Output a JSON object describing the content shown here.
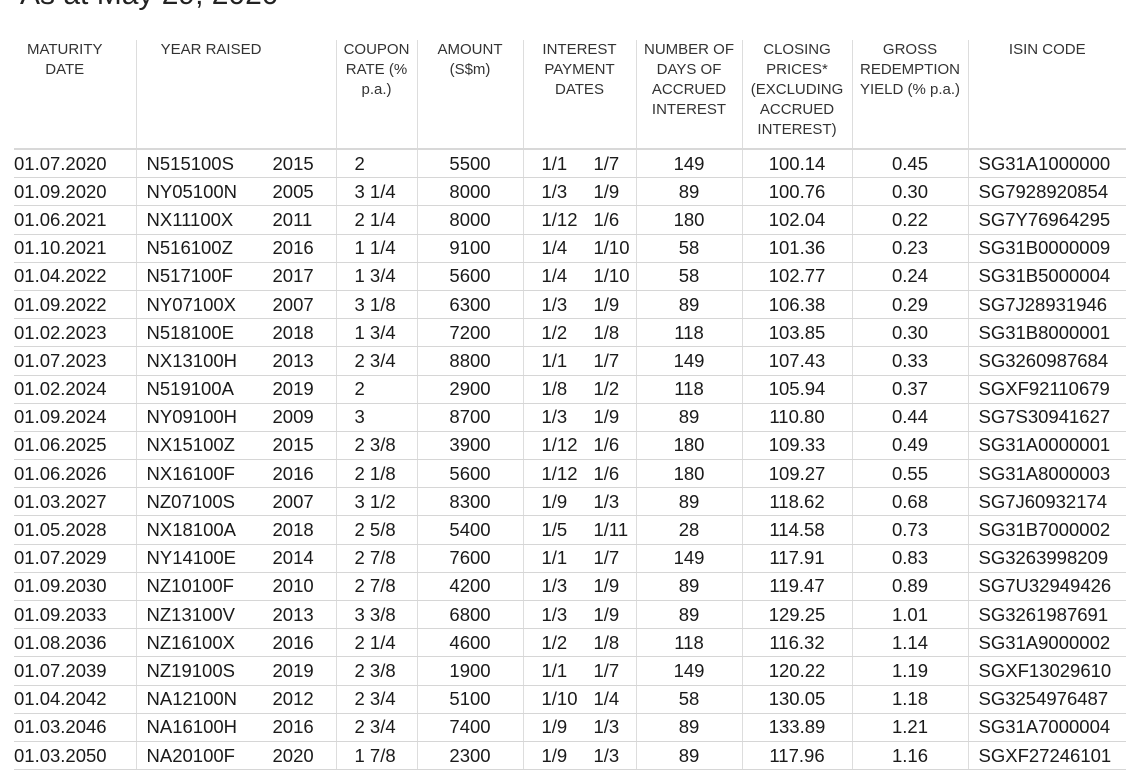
{
  "title": "As at May 29, 2020",
  "columns": [
    "MATURITY DATE",
    "YEAR RAISED",
    "COUPON RATE (% p.a.)",
    "AMOUNT (S$m)",
    "INTEREST PAYMENT DATES",
    "NUMBER OF DAYS OF ACCRUED INTEREST",
    "CLOSING PRICES* (EXCLUDING ACCRUED INTEREST)",
    "GROSS REDEMPTION YIELD (% p.a.)",
    "ISIN CODE"
  ],
  "rows": [
    [
      "01.07.2020",
      "N515100S",
      "2015",
      "2",
      "5500",
      "1/1",
      "1/7",
      "149",
      "100.14",
      "0.45",
      "SG31A1000000"
    ],
    [
      "01.09.2020",
      "NY05100N",
      "2005",
      "3 1/4",
      "8000",
      "1/3",
      "1/9",
      "89",
      "100.76",
      "0.30",
      "SG7928920854"
    ],
    [
      "01.06.2021",
      "NX11100X",
      "2011",
      "2 1/4",
      "8000",
      "1/12",
      "1/6",
      "180",
      "102.04",
      "0.22",
      "SG7Y76964295"
    ],
    [
      "01.10.2021",
      "N516100Z",
      "2016",
      "1 1/4",
      "9100",
      "1/4",
      "1/10",
      "58",
      "101.36",
      "0.23",
      "SG31B0000009"
    ],
    [
      "01.04.2022",
      "N517100F",
      "2017",
      "1 3/4",
      "5600",
      "1/4",
      "1/10",
      "58",
      "102.77",
      "0.24",
      "SG31B5000004"
    ],
    [
      "01.09.2022",
      "NY07100X",
      "2007",
      "3 1/8",
      "6300",
      "1/3",
      "1/9",
      "89",
      "106.38",
      "0.29",
      "SG7J28931946"
    ],
    [
      "01.02.2023",
      "N518100E",
      "2018",
      "1 3/4",
      "7200",
      "1/2",
      "1/8",
      "118",
      "103.85",
      "0.30",
      "SG31B8000001"
    ],
    [
      "01.07.2023",
      "NX13100H",
      "2013",
      "2 3/4",
      "8800",
      "1/1",
      "1/7",
      "149",
      "107.43",
      "0.33",
      "SG3260987684"
    ],
    [
      "01.02.2024",
      "N519100A",
      "2019",
      "2",
      "2900",
      "1/8",
      "1/2",
      "118",
      "105.94",
      "0.37",
      "SGXF92110679"
    ],
    [
      "01.09.2024",
      "NY09100H",
      "2009",
      "3",
      "8700",
      "1/3",
      "1/9",
      "89",
      "110.80",
      "0.44",
      "SG7S30941627"
    ],
    [
      "01.06.2025",
      "NX15100Z",
      "2015",
      "2 3/8",
      "3900",
      "1/12",
      "1/6",
      "180",
      "109.33",
      "0.49",
      "SG31A0000001"
    ],
    [
      "01.06.2026",
      "NX16100F",
      "2016",
      "2 1/8",
      "5600",
      "1/12",
      "1/6",
      "180",
      "109.27",
      "0.55",
      "SG31A8000003"
    ],
    [
      "01.03.2027",
      "NZ07100S",
      "2007",
      "3 1/2",
      "8300",
      "1/9",
      "1/3",
      "89",
      "118.62",
      "0.68",
      "SG7J60932174"
    ],
    [
      "01.05.2028",
      "NX18100A",
      "2018",
      "2 5/8",
      "5400",
      "1/5",
      "1/11",
      "28",
      "114.58",
      "0.73",
      "SG31B7000002"
    ],
    [
      "01.07.2029",
      "NY14100E",
      "2014",
      "2 7/8",
      "7600",
      "1/1",
      "1/7",
      "149",
      "117.91",
      "0.83",
      "SG3263998209"
    ],
    [
      "01.09.2030",
      "NZ10100F",
      "2010",
      "2 7/8",
      "4200",
      "1/3",
      "1/9",
      "89",
      "119.47",
      "0.89",
      "SG7U32949426"
    ],
    [
      "01.09.2033",
      "NZ13100V",
      "2013",
      "3 3/8",
      "6800",
      "1/3",
      "1/9",
      "89",
      "129.25",
      "1.01",
      "SG3261987691"
    ],
    [
      "01.08.2036",
      "NZ16100X",
      "2016",
      "2 1/4",
      "4600",
      "1/2",
      "1/8",
      "118",
      "116.32",
      "1.14",
      "SG31A9000002"
    ],
    [
      "01.07.2039",
      "NZ19100S",
      "2019",
      "2 3/8",
      "1900",
      "1/1",
      "1/7",
      "149",
      "120.22",
      "1.19",
      "SGXF13029610"
    ],
    [
      "01.04.2042",
      "NA12100N",
      "2012",
      "2 3/4",
      "5100",
      "1/10",
      "1/4",
      "58",
      "130.05",
      "1.18",
      "SG3254976487"
    ],
    [
      "01.03.2046",
      "NA16100H",
      "2016",
      "2 3/4",
      "7400",
      "1/9",
      "1/3",
      "89",
      "133.89",
      "1.21",
      "SG31A7000004"
    ],
    [
      "01.03.2050",
      "NA20100F",
      "2020",
      "1 7/8",
      "2300",
      "1/9",
      "1/3",
      "89",
      "117.96",
      "1.16",
      "SGXF27246101"
    ]
  ]
}
